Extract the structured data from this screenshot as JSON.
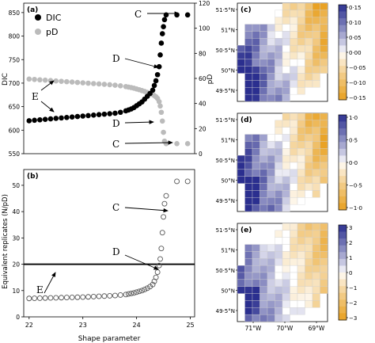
{
  "chart_data": [
    {
      "panel": "(a)",
      "type": "scatter",
      "ylabel": "DIC",
      "y2label": "pD",
      "ylim": [
        550,
        870
      ],
      "y2lim": [
        0,
        120
      ],
      "yticks": [
        550,
        600,
        650,
        700,
        750,
        800,
        850
      ],
      "y2ticks": [
        0,
        20,
        40,
        60,
        80,
        100,
        120
      ],
      "xlim": [
        21.9,
        25.08
      ],
      "legend_position": "top-left",
      "series": [
        {
          "name": "DIC",
          "axis": "left",
          "color": "#000000",
          "x": [
            22.0,
            22.1,
            22.2,
            22.3,
            22.4,
            22.5,
            22.6,
            22.7,
            22.8,
            22.9,
            23.0,
            23.1,
            23.2,
            23.3,
            23.4,
            23.5,
            23.6,
            23.7,
            23.8,
            23.85,
            23.9,
            23.95,
            24.0,
            24.05,
            24.1,
            24.15,
            24.2,
            24.25,
            24.3,
            24.33,
            24.36,
            24.39,
            24.42,
            24.44,
            24.46,
            24.48,
            24.5,
            24.52,
            24.55,
            24.75,
            24.95
          ],
          "y": [
            620,
            621,
            622,
            623,
            624,
            625,
            626,
            627,
            628,
            629,
            630,
            631,
            632,
            633,
            634,
            635,
            636,
            638,
            641,
            643,
            645,
            648,
            652,
            656,
            660,
            666,
            672,
            678,
            685,
            695,
            705,
            718,
            735,
            760,
            785,
            805,
            820,
            835,
            845,
            845,
            845
          ]
        },
        {
          "name": "pD",
          "axis": "right",
          "color": "#bbbbbb",
          "x": [
            22.0,
            22.1,
            22.2,
            22.3,
            22.4,
            22.5,
            22.6,
            22.7,
            22.8,
            22.9,
            23.0,
            23.1,
            23.2,
            23.3,
            23.4,
            23.5,
            23.6,
            23.7,
            23.8,
            23.85,
            23.9,
            23.95,
            24.0,
            24.05,
            24.1,
            24.15,
            24.2,
            24.25,
            24.3,
            24.33,
            24.36,
            24.39,
            24.42,
            24.44,
            24.46,
            24.48,
            24.5,
            24.52,
            24.55,
            24.75,
            24.95
          ],
          "y": [
            59.5,
            59.2,
            58.9,
            58.6,
            58.3,
            58.0,
            57.7,
            57.4,
            57.1,
            56.8,
            56.5,
            56.2,
            55.9,
            55.6,
            55.3,
            55.0,
            54.6,
            54.1,
            53.5,
            53.1,
            52.7,
            52.2,
            51.6,
            51.0,
            50.3,
            49.6,
            48.8,
            48.0,
            47.2,
            46.3,
            45.4,
            44.0,
            41.5,
            38.0,
            33.0,
            26.0,
            17.0,
            10.0,
            8.0,
            8.0,
            8.0
          ]
        }
      ],
      "annotations": [
        {
          "text": "C",
          "target": "DIC"
        },
        {
          "text": "D",
          "target": "DIC"
        },
        {
          "text": "E",
          "target": "both"
        },
        {
          "text": "D",
          "target": "pD"
        },
        {
          "text": "C",
          "target": "pD"
        }
      ]
    },
    {
      "panel": "(b)",
      "type": "scatter",
      "xlabel": "Shape parameter",
      "ylabel": "Equivalent replicates (N/pD)",
      "xlim": [
        21.9,
        25.08
      ],
      "ylim": [
        0,
        56
      ],
      "xticks": [
        22,
        23,
        24,
        25
      ],
      "yticks": [
        0,
        10,
        20,
        30,
        40,
        50
      ],
      "hline": 20,
      "series": [
        {
          "name": "",
          "marker": "open-circle",
          "color": "#555555",
          "x": [
            22.0,
            22.1,
            22.2,
            22.3,
            22.4,
            22.5,
            22.6,
            22.7,
            22.8,
            22.9,
            23.0,
            23.1,
            23.2,
            23.3,
            23.4,
            23.5,
            23.6,
            23.7,
            23.8,
            23.85,
            23.9,
            23.95,
            24.0,
            24.05,
            24.1,
            24.15,
            24.2,
            24.25,
            24.3,
            24.33,
            24.36,
            24.39,
            24.42,
            24.44,
            24.46,
            24.48,
            24.5,
            24.52,
            24.55,
            24.75,
            24.95
          ],
          "y": [
            7.0,
            7.05,
            7.1,
            7.15,
            7.2,
            7.25,
            7.3,
            7.35,
            7.4,
            7.45,
            7.5,
            7.6,
            7.7,
            7.8,
            7.9,
            8.0,
            8.1,
            8.3,
            8.5,
            8.7,
            8.9,
            9.1,
            9.4,
            9.7,
            10.0,
            10.4,
            10.9,
            11.5,
            12.3,
            13.5,
            15.0,
            17.0,
            19.5,
            22.0,
            26.0,
            32.0,
            38.0,
            43.0,
            46.0,
            51.5,
            51.5
          ]
        }
      ],
      "annotations": [
        {
          "text": "C"
        },
        {
          "text": "D"
        },
        {
          "text": "E"
        }
      ]
    },
    {
      "panel": "(c)",
      "type": "heatmap",
      "colorbar_ticks": [
        "0·15",
        "0·10",
        "0·05",
        "0·00",
        "−0·05",
        "−0·10",
        "−0·15"
      ],
      "lat_labels": [
        "51·5°N",
        "51°N",
        "50·5°N",
        "50°N",
        "49·5°N"
      ]
    },
    {
      "panel": "(d)",
      "type": "heatmap",
      "colorbar_ticks": [
        "1·0",
        "0·5",
        "0·0",
        "−0·5",
        "−1·0"
      ],
      "lat_labels": [
        "51·5°N",
        "51°N",
        "50·5°N",
        "50°N",
        "49·5°N"
      ]
    },
    {
      "panel": "(e)",
      "type": "heatmap",
      "colorbar_ticks": [
        "3",
        "2",
        "1",
        "0",
        "−1",
        "−2",
        "−3"
      ],
      "lat_labels": [
        "51·5°N",
        "51°N",
        "50·5°N",
        "50°N",
        "49·5°N"
      ],
      "lon_labels": [
        "71°W",
        "70°W",
        "69°W"
      ]
    }
  ],
  "colors": {
    "positive": "#2b2f8f",
    "negative": "#e8a020",
    "neutral": "#ffffff"
  }
}
